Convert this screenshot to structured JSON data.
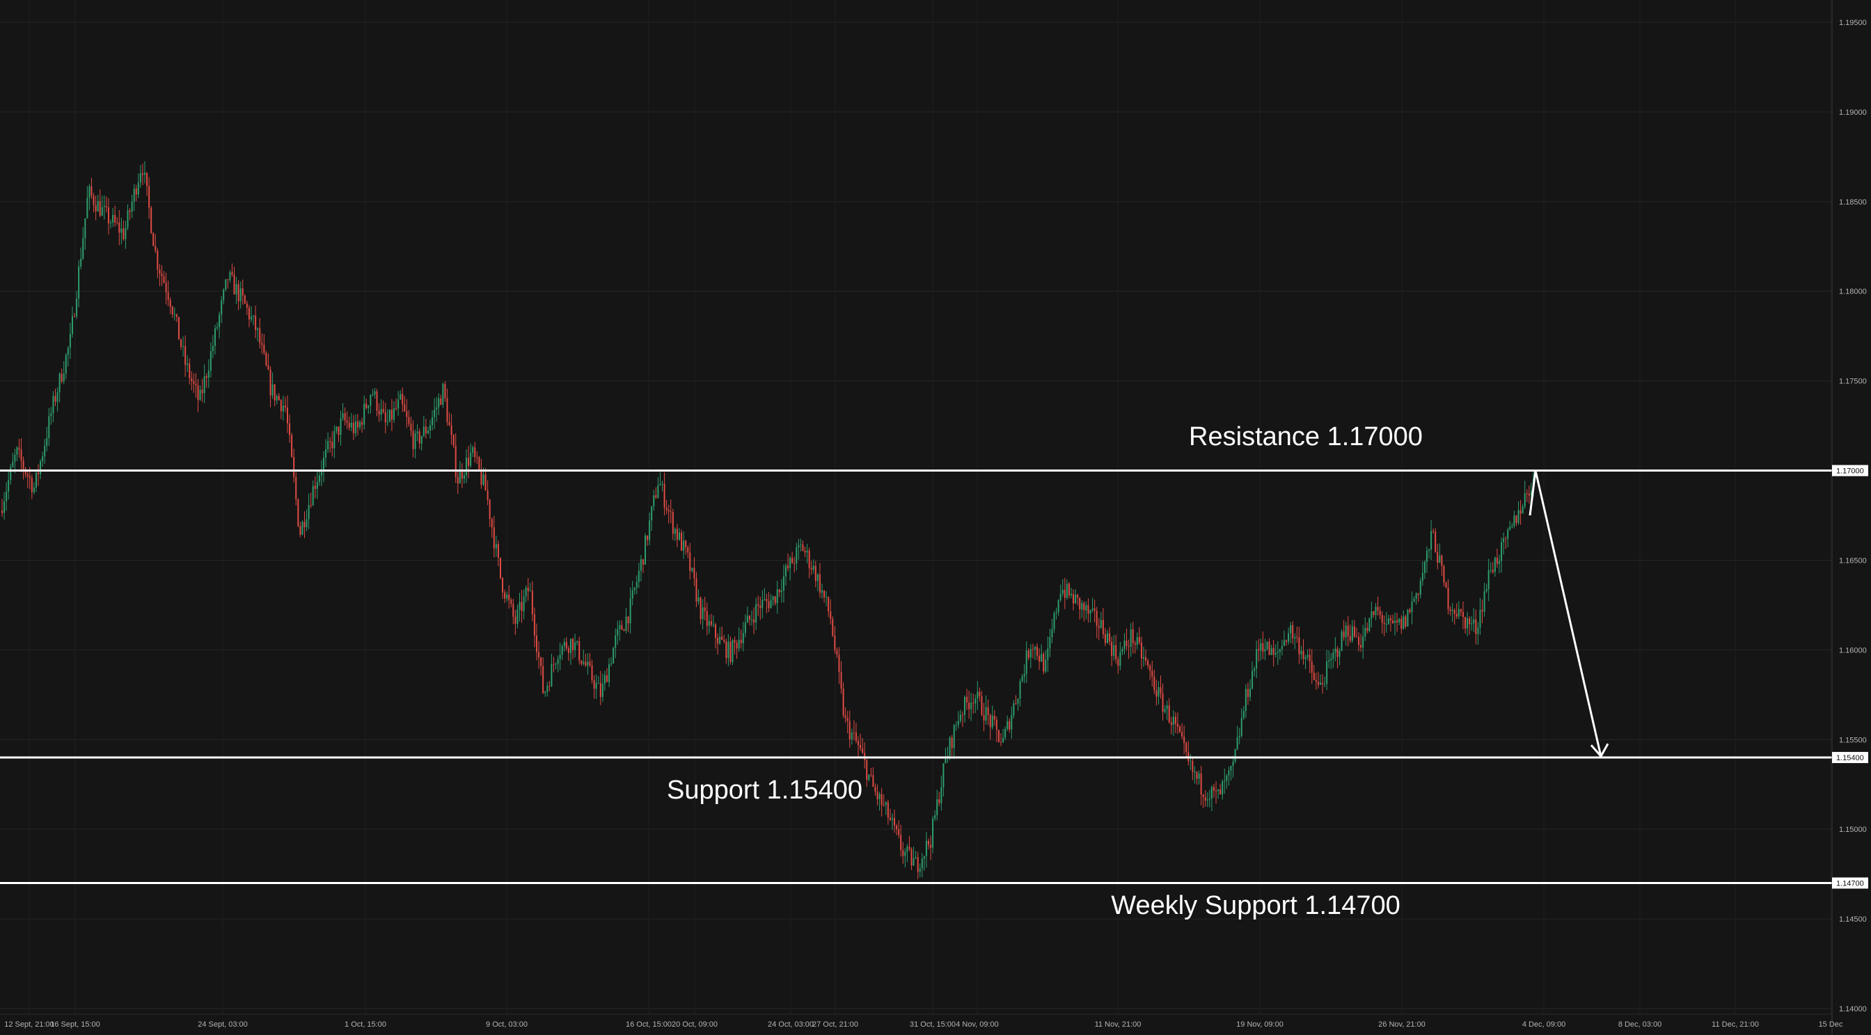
{
  "chart_data": {
    "type": "candlestick",
    "title": "",
    "xlabel": "",
    "ylabel": "",
    "ylim": [
      1.14,
      1.1965
    ],
    "grid": true,
    "colors": {
      "background": "#151515",
      "grid": "#262626",
      "up": "#2e9e6e",
      "down": "#e04c44",
      "level_line": "#ffffff",
      "arrow": "#ffffff",
      "axis_text": "#b4b4b4"
    },
    "y_ticks": [
      "1.19500",
      "1.19000",
      "1.18500",
      "1.18000",
      "1.17500",
      "1.17000",
      "1.16500",
      "1.16000",
      "1.15500",
      "1.15400",
      "1.15000",
      "1.14700",
      "1.14500",
      "1.14000"
    ],
    "x_ticks": [
      "12 Sept, 21:00",
      "16 Sept, 15:00",
      "24 Sept, 03:00",
      "1 Oct, 15:00",
      "9 Oct, 03:00",
      "16 Oct, 15:00",
      "20 Oct, 09:00",
      "24 Oct, 03:00",
      "27 Oct, 21:00",
      "31 Oct, 15:00",
      "4 Nov, 09:00",
      "11 Nov, 21:00",
      "19 Nov, 09:00",
      "26 Nov, 21:00",
      "4 Dec, 09:00",
      "8 Dec, 03:00",
      "11 Dec, 21:00",
      "15 Dec"
    ],
    "price_path": {
      "x_time_index": [
        0,
        5,
        10,
        15,
        20,
        25,
        30,
        35,
        40,
        44,
        48,
        52,
        56,
        60,
        64,
        68,
        72,
        76,
        80,
        84,
        88,
        92,
        96,
        100,
        104,
        108,
        112,
        116,
        120,
        124,
        128,
        132,
        136,
        140,
        144,
        148,
        152,
        156,
        160,
        164,
        168,
        172,
        176,
        180,
        184,
        188,
        192,
        196,
        200,
        204,
        208,
        212,
        216,
        220,
        224,
        228,
        232,
        236,
        240,
        244,
        248,
        252,
        256,
        260,
        264,
        268,
        272,
        276,
        280,
        284,
        288,
        292,
        296,
        300,
        304,
        308,
        312,
        316,
        320,
        324,
        328,
        332,
        336,
        340,
        344,
        348,
        352,
        356,
        360,
        364,
        368,
        372,
        376,
        380,
        384,
        388,
        392,
        396,
        400,
        404,
        408,
        412,
        416,
        420,
        424,
        428
      ],
      "price": [
        1.1675,
        1.171,
        1.169,
        1.1735,
        1.1772,
        1.1855,
        1.1842,
        1.1832,
        1.1872,
        1.1818,
        1.1795,
        1.176,
        1.1738,
        1.1772,
        1.1808,
        1.1795,
        1.1778,
        1.1745,
        1.1735,
        1.1665,
        1.1692,
        1.1712,
        1.1728,
        1.1722,
        1.1745,
        1.1725,
        1.1738,
        1.1715,
        1.1725,
        1.1745,
        1.1695,
        1.171,
        1.1688,
        1.164,
        1.1615,
        1.1635,
        1.1575,
        1.16,
        1.1605,
        1.159,
        1.1575,
        1.1605,
        1.1622,
        1.1655,
        1.1695,
        1.167,
        1.1652,
        1.162,
        1.1608,
        1.1598,
        1.1612,
        1.1625,
        1.1628,
        1.1645,
        1.1658,
        1.1642,
        1.1618,
        1.156,
        1.1545,
        1.1522,
        1.1508,
        1.1488,
        1.148,
        1.1495,
        1.1538,
        1.1565,
        1.1575,
        1.1562,
        1.1548,
        1.1575,
        1.1605,
        1.159,
        1.1635,
        1.1628,
        1.162,
        1.1612,
        1.1595,
        1.1608,
        1.1592,
        1.1572,
        1.1558,
        1.1535,
        1.1522,
        1.1518,
        1.1532,
        1.1575,
        1.1605,
        1.1595,
        1.1612,
        1.1598,
        1.1578,
        1.1595,
        1.1612,
        1.1605,
        1.1622,
        1.1612,
        1.1615,
        1.1635,
        1.1665,
        1.1628,
        1.1618,
        1.1612,
        1.1645,
        1.1658,
        1.1678,
        1.1695
      ]
    },
    "levels": [
      {
        "name": "Resistance",
        "price": 1.17,
        "tag": "1.17000",
        "label": "Resistance 1.17000",
        "label_anchor": "middle"
      },
      {
        "name": "Support",
        "price": 1.154,
        "tag": "1.15400",
        "label": "Support 1.15400",
        "label_anchor": "start"
      },
      {
        "name": "Weekly Support",
        "price": 1.147,
        "tag": "1.14700",
        "label": "Weekly Support 1.14700",
        "label_anchor": "middle"
      }
    ],
    "projection_arrow": {
      "from_price": 1.17,
      "to_price": 1.155
    }
  }
}
